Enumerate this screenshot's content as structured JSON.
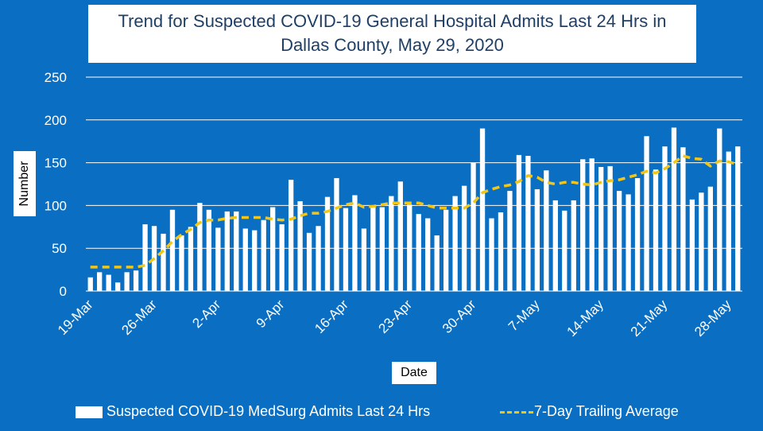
{
  "chart_data": {
    "type": "bar",
    "title": "Trend for Suspected COVID-19 General Hospital Admits Last 24 Hrs in Dallas County, May 29, 2020",
    "title_lines": [
      "Trend for Suspected COVID-19 General Hospital Admits Last 24 Hrs in",
      "Dallas County, May 29, 2020"
    ],
    "xlabel": "Date",
    "ylabel": "Number",
    "ylim": [
      0,
      250
    ],
    "yticks": [
      0,
      50,
      100,
      150,
      200,
      250
    ],
    "grid": true,
    "legend_position": "bottom",
    "x_tick_labels": [
      {
        "label": "19-Mar",
        "index": 0
      },
      {
        "label": "26-Mar",
        "index": 7
      },
      {
        "label": "2-Apr",
        "index": 14
      },
      {
        "label": "9-Apr",
        "index": 21
      },
      {
        "label": "16-Apr",
        "index": 28
      },
      {
        "label": "23-Apr",
        "index": 35
      },
      {
        "label": "30-Apr",
        "index": 42
      },
      {
        "label": "7-May",
        "index": 49
      },
      {
        "label": "14-May",
        "index": 56
      },
      {
        "label": "21-May",
        "index": 63
      },
      {
        "label": "28-May",
        "index": 70
      }
    ],
    "series": [
      {
        "name": "Suspected COVID-19 MedSurg Admits Last 24 Hrs",
        "kind": "bar",
        "color": "#ffffff",
        "values": [
          16,
          22,
          19,
          10,
          22,
          24,
          78,
          76,
          67,
          95,
          65,
          75,
          103,
          95,
          74,
          93,
          93,
          73,
          71,
          83,
          98,
          78,
          130,
          105,
          68,
          76,
          110,
          132,
          97,
          112,
          73,
          98,
          98,
          111,
          128,
          101,
          90,
          85,
          65,
          95,
          111,
          123,
          150,
          190,
          85,
          92,
          117,
          159,
          158,
          119,
          141,
          106,
          94,
          106,
          154,
          155,
          145,
          146,
          117,
          113,
          132,
          181,
          142,
          169,
          191,
          168,
          107,
          115,
          122,
          190,
          163,
          169
        ]
      },
      {
        "name": "7-Day Trailing Average",
        "kind": "line",
        "style": "dashed",
        "color": "#f2c618",
        "values": [
          28,
          28,
          28,
          28,
          28,
          28,
          30,
          38,
          47,
          58,
          66,
          72,
          80,
          83,
          83,
          85,
          86,
          86,
          86,
          86,
          84,
          83,
          84,
          88,
          91,
          91,
          93,
          97,
          101,
          103,
          98,
          99,
          101,
          103,
          103,
          103,
          103,
          100,
          97,
          97,
          97,
          97,
          103,
          115,
          119,
          122,
          124,
          128,
          135,
          133,
          127,
          125,
          127,
          127,
          125,
          124,
          127,
          129,
          130,
          133,
          136,
          140,
          138,
          143,
          150,
          158,
          155,
          154,
          146,
          152,
          151,
          148
        ]
      }
    ]
  }
}
